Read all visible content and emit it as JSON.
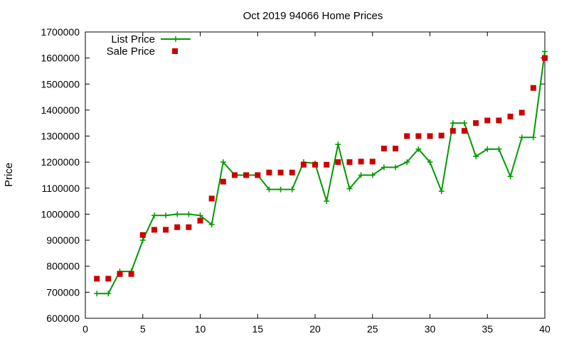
{
  "chart_data": {
    "type": "line",
    "title": "Oct 2019 94066 Home Prices",
    "xlabel": "",
    "ylabel": "Price",
    "xlim": [
      0,
      40
    ],
    "ylim": [
      600000,
      1700000
    ],
    "xticks": [
      0,
      5,
      10,
      15,
      20,
      25,
      30,
      35,
      40
    ],
    "yticks": [
      600000,
      700000,
      800000,
      900000,
      1000000,
      1100000,
      1200000,
      1300000,
      1400000,
      1500000,
      1600000,
      1700000
    ],
    "grid": false,
    "legend_position": "top-left",
    "series": [
      {
        "name": "List Price",
        "style": "line-with-plus-markers",
        "color": "#009900",
        "x": [
          1,
          2,
          3,
          4,
          5,
          6,
          7,
          8,
          9,
          10,
          11,
          12,
          13,
          14,
          15,
          16,
          17,
          18,
          19,
          20,
          21,
          22,
          23,
          24,
          25,
          26,
          27,
          28,
          29,
          30,
          31,
          32,
          33,
          34,
          35,
          36,
          37,
          38,
          39,
          40
        ],
        "values": [
          695000,
          695000,
          780000,
          780000,
          900000,
          995000,
          995000,
          1000000,
          1000000,
          995000,
          960000,
          1200000,
          1150000,
          1150000,
          1150000,
          1095000,
          1095000,
          1095000,
          1200000,
          1195000,
          1050000,
          1268000,
          1098000,
          1150000,
          1150000,
          1180000,
          1180000,
          1200000,
          1250000,
          1200000,
          1088000,
          1350000,
          1350000,
          1222000,
          1250000,
          1250000,
          1145000,
          1295000,
          1295000,
          1625000
        ]
      },
      {
        "name": "Sale Price",
        "style": "square-markers",
        "color": "#cc0000",
        "x": [
          1,
          2,
          3,
          4,
          5,
          6,
          7,
          8,
          9,
          10,
          11,
          12,
          13,
          14,
          15,
          16,
          17,
          18,
          19,
          20,
          21,
          22,
          23,
          24,
          25,
          26,
          27,
          28,
          29,
          30,
          31,
          32,
          33,
          34,
          35,
          36,
          37,
          38,
          39,
          40
        ],
        "values": [
          752000,
          752000,
          770000,
          770000,
          920000,
          940000,
          940000,
          950000,
          950000,
          975000,
          1060000,
          1125000,
          1150000,
          1150000,
          1150000,
          1160000,
          1160000,
          1160000,
          1190000,
          1190000,
          1190000,
          1200000,
          1200000,
          1202000,
          1202000,
          1252000,
          1252000,
          1300000,
          1300000,
          1300000,
          1302000,
          1320000,
          1320000,
          1350000,
          1360000,
          1360000,
          1375000,
          1390000,
          1485000,
          1600000
        ]
      }
    ]
  }
}
